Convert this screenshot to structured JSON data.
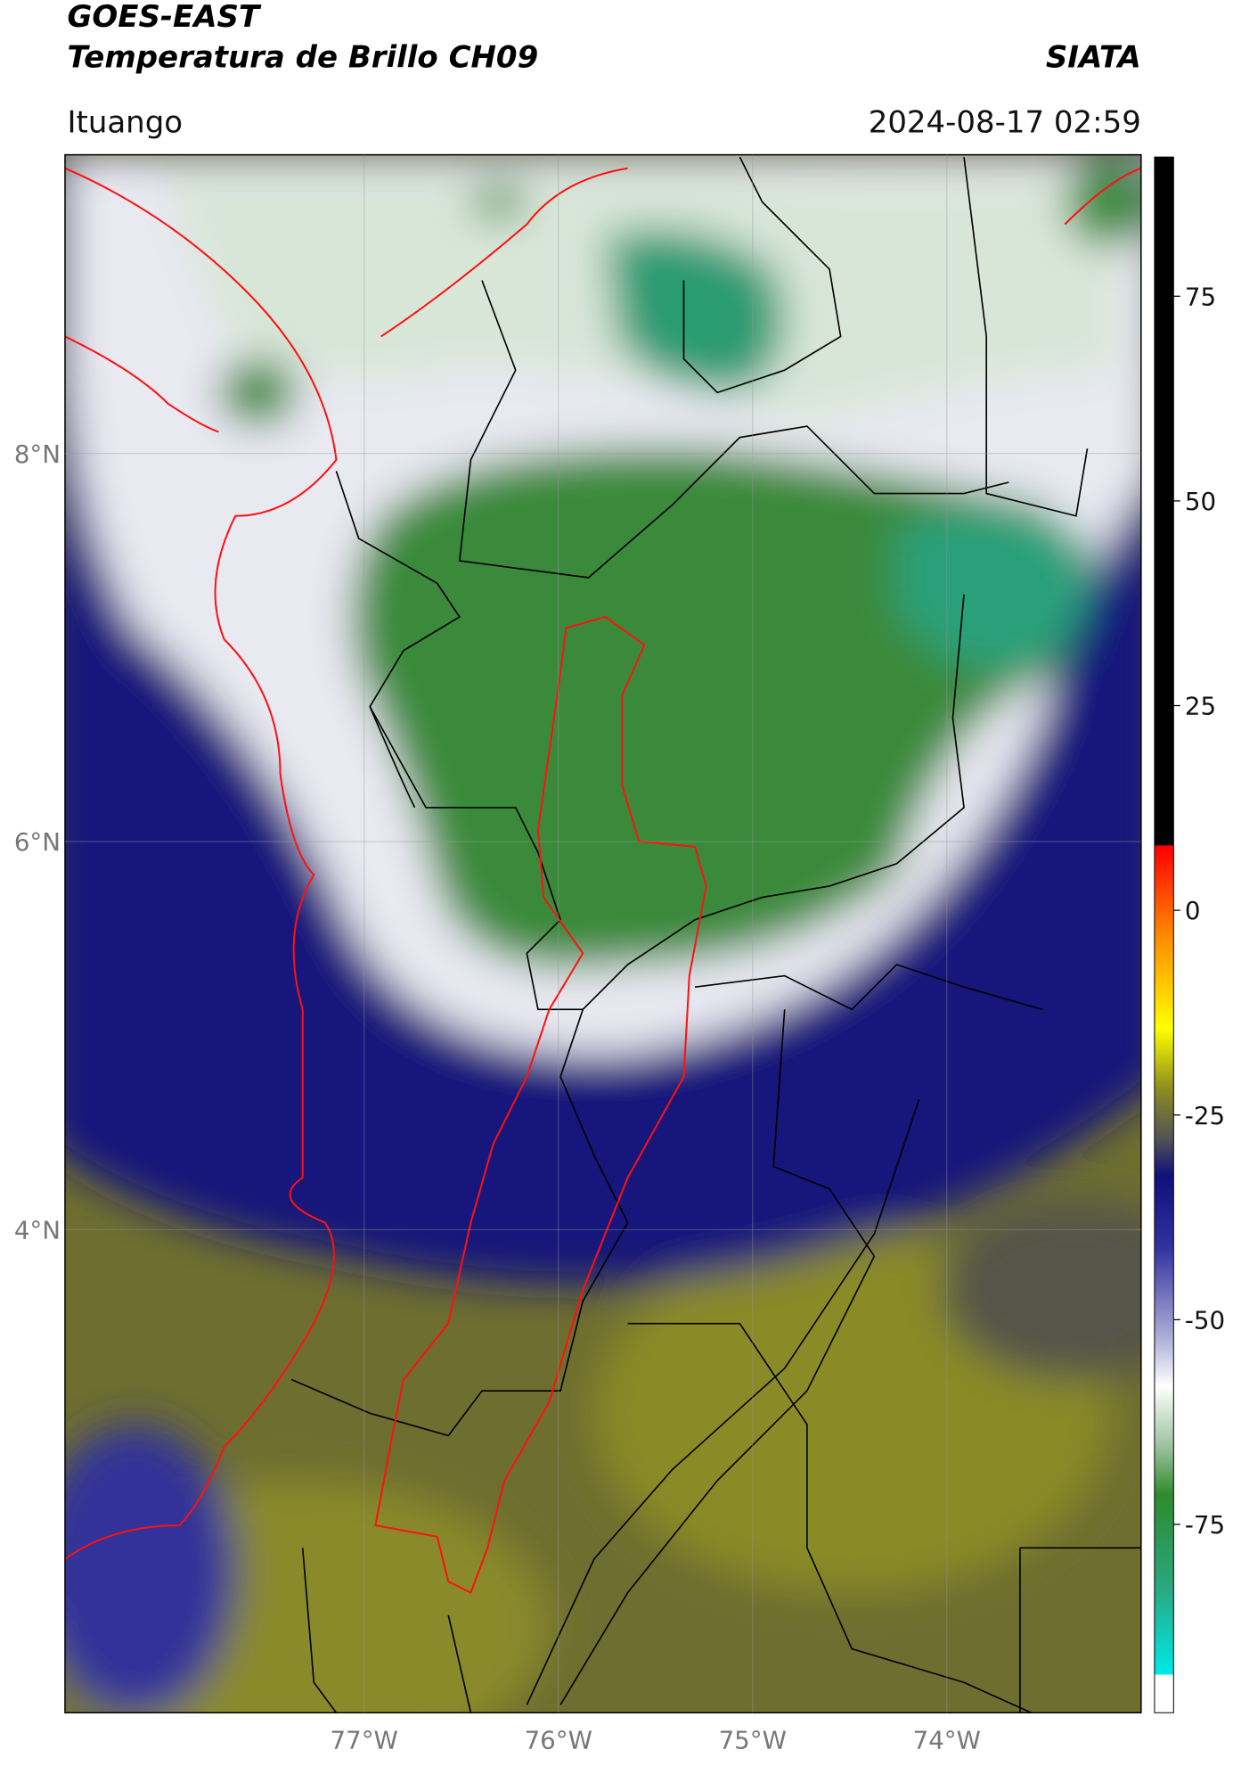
{
  "header": {
    "title": "GOES-EAST",
    "subtitle": "Temperatura de Brillo CH09",
    "source": "SIATA",
    "location": "Ituango",
    "datetime": "2024-08-17 02:59"
  },
  "chart_data": {
    "type": "map",
    "xlim": [
      -78.54,
      -73.0
    ],
    "ylim": [
      1.51,
      9.54
    ],
    "xticks": [
      {
        "value": -77,
        "label": "77°W"
      },
      {
        "value": -76,
        "label": "76°W"
      },
      {
        "value": -75,
        "label": "75°W"
      },
      {
        "value": -74,
        "label": "74°W"
      }
    ],
    "yticks": [
      {
        "value": 4,
        "label": "4°N"
      },
      {
        "value": 6,
        "label": "6°N"
      },
      {
        "value": 8,
        "label": "8°N"
      }
    ],
    "grid": true,
    "colorbar": {
      "lim": [
        -98,
        92
      ],
      "ticks": [
        75,
        50,
        25,
        0,
        -25,
        -50,
        -75
      ]
    }
  }
}
